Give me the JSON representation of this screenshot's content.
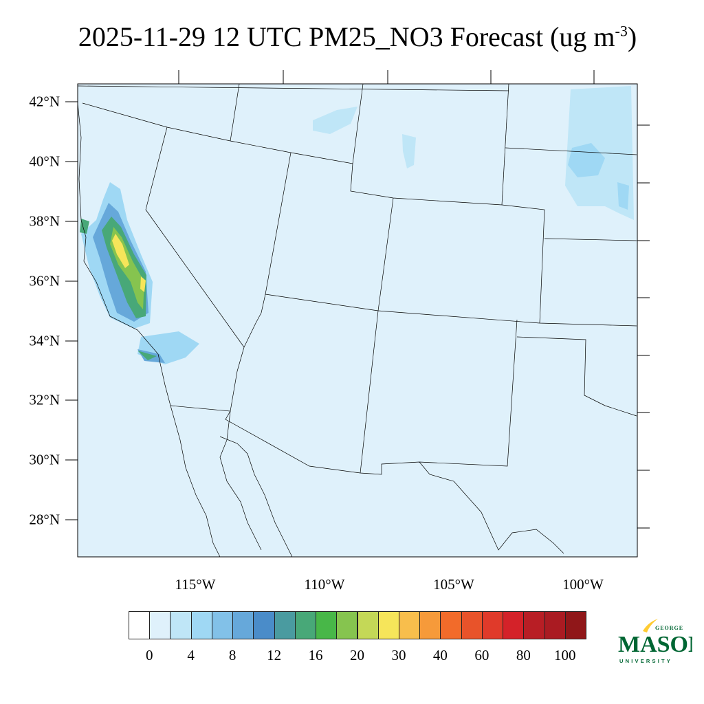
{
  "title": {
    "main": "2025-11-29 12 UTC PM25_NO3 Forecast (ug m",
    "exponent": "-3",
    "close": ")"
  },
  "map": {
    "lat_labels": [
      "42°N",
      "40°N",
      "38°N",
      "36°N",
      "34°N",
      "32°N",
      "30°N",
      "28°N"
    ],
    "lon_labels": [
      "115°W",
      "110°W",
      "105°W",
      "100°W"
    ],
    "background_color": "#dff1fb",
    "border_color": "#000000"
  },
  "colorbar": {
    "colors": [
      "#ffffff",
      "#dff1fb",
      "#bfe6f7",
      "#9fd8f4",
      "#82c1e8",
      "#66a8da",
      "#4a8cc9",
      "#4a9ba0",
      "#48a878",
      "#48b748",
      "#86c44f",
      "#c4d857",
      "#f6e55a",
      "#f8be4c",
      "#f69a3a",
      "#f26b2a",
      "#e8532a",
      "#e03a2a",
      "#d42229",
      "#b81e25",
      "#aa1b22",
      "#901719"
    ],
    "labels": [
      "0",
      "4",
      "8",
      "12",
      "16",
      "20",
      "30",
      "40",
      "60",
      "80",
      "100"
    ]
  },
  "logo": {
    "line1": "GEORGE",
    "line2": "MASON",
    "line3": "UNIVERSITY",
    "green": "#006633",
    "gold": "#ffcc33"
  }
}
